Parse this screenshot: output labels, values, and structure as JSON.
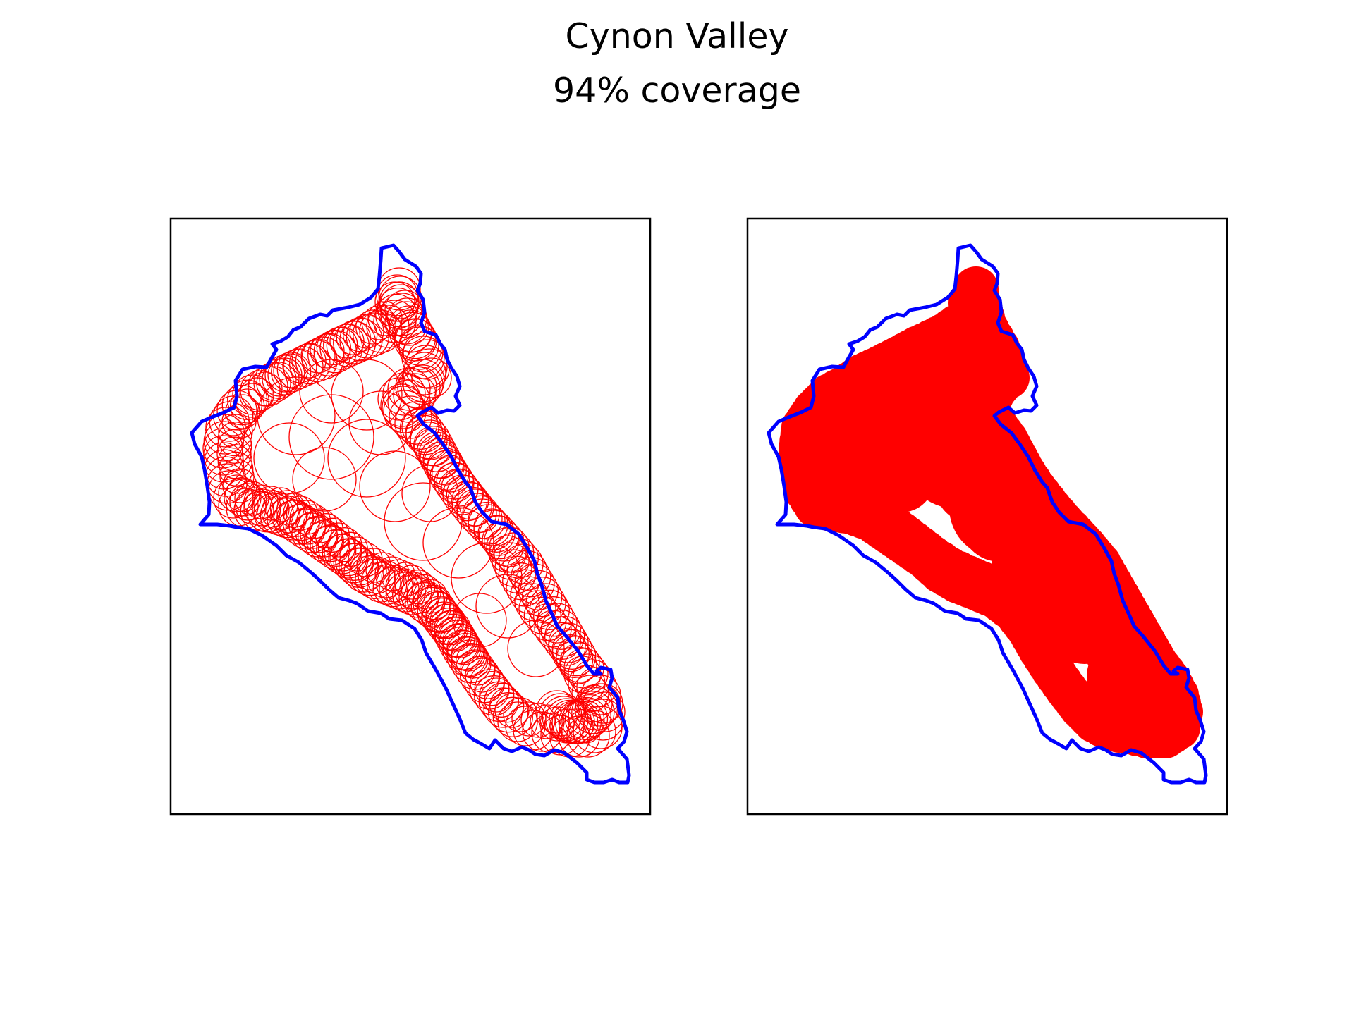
{
  "figure": {
    "title": "Cynon Valley",
    "subtitle": "94% coverage"
  },
  "panels": [
    {
      "id": "left",
      "style": "outline-circles"
    },
    {
      "id": "right",
      "style": "filled-union"
    }
  ],
  "colors": {
    "boundary": "#0000ff",
    "circles": "#ff0000",
    "frame": "#000000",
    "background": "#ffffff"
  }
}
